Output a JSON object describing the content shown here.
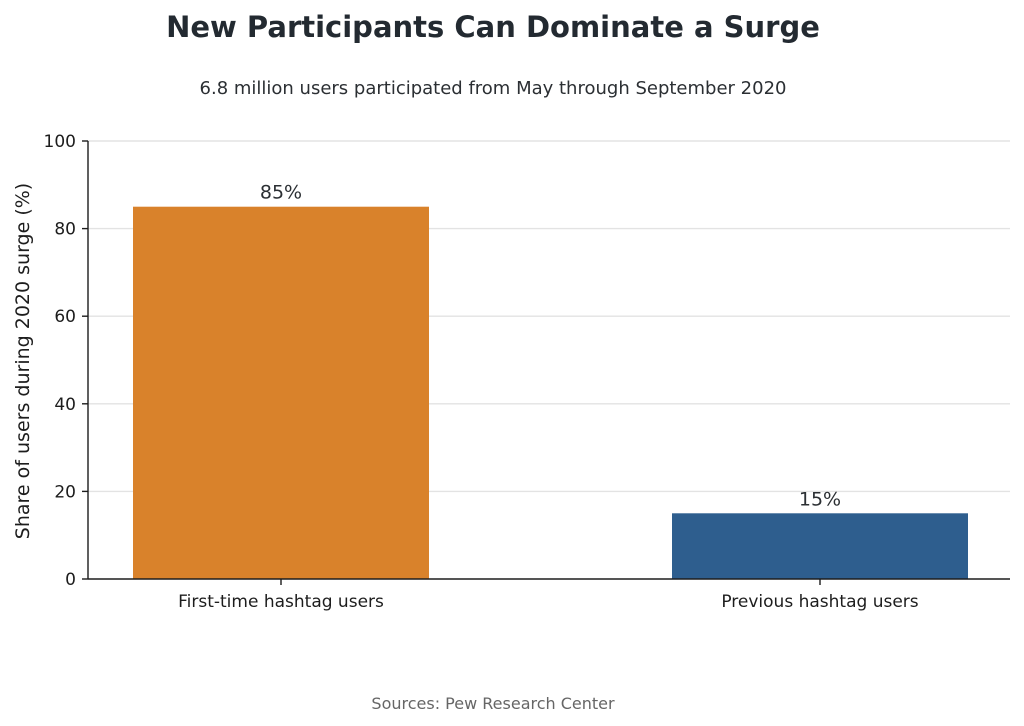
{
  "chart_data": {
    "type": "bar",
    "title": "New Participants Can Dominate a Surge",
    "subtitle": "6.8 million users participated from May through September 2020",
    "xlabel": "",
    "ylabel": "Share of users during 2020 surge (%)",
    "ylim": [
      0,
      100
    ],
    "yticks": [
      0,
      20,
      40,
      60,
      80,
      100
    ],
    "categories": [
      "First-time hashtag users",
      "Previous hashtag users"
    ],
    "values": [
      85,
      15
    ],
    "data_labels": [
      "85%",
      "15%"
    ],
    "colors": [
      "#d9822b",
      "#2e5e8e"
    ],
    "grid": "horizontal",
    "legend": "none",
    "source": "Sources: Pew Research Center"
  }
}
